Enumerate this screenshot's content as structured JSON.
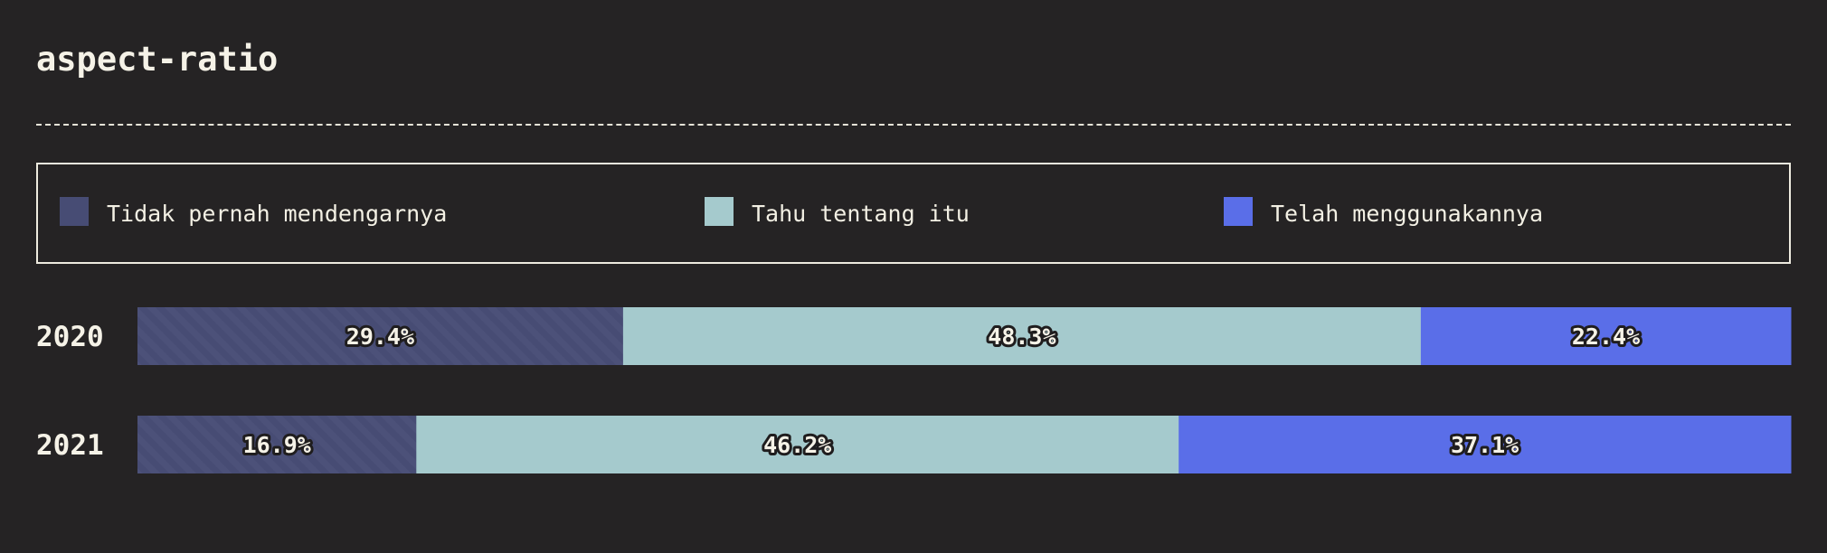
{
  "title": "aspect-ratio",
  "colors": {
    "background": "#252324",
    "never_heard": "#474c74",
    "know_about": "#a5cacd",
    "used_it": "#5a6ee8"
  },
  "legend": {
    "items": [
      {
        "label": "Tidak pernah mendengarnya",
        "color": "#474c74"
      },
      {
        "label": "Tahu tentang itu",
        "color": "#a5cacd"
      },
      {
        "label": "Telah menggunakannya",
        "color": "#5a6ee8"
      }
    ]
  },
  "chart_data": {
    "type": "bar",
    "orientation": "horizontal",
    "stacked": true,
    "normalized": true,
    "title": "aspect-ratio",
    "categories": [
      "2020",
      "2021"
    ],
    "series": [
      {
        "name": "Tidak pernah mendengarnya",
        "values": [
          29.4,
          16.9
        ],
        "labels": [
          "29.4%",
          "16.9%"
        ],
        "color": "#474c74",
        "pattern": "diagonal-stripes"
      },
      {
        "name": "Tahu tentang itu",
        "values": [
          48.3,
          46.2
        ],
        "labels": [
          "48.3%",
          "46.2%"
        ],
        "color": "#a5cacd"
      },
      {
        "name": "Telah menggunakannya",
        "values": [
          22.4,
          37.1
        ],
        "labels": [
          "22.4%",
          "37.1%"
        ],
        "color": "#5a6ee8"
      }
    ],
    "xlim": [
      0,
      100
    ],
    "unit": "%",
    "legend_position": "top",
    "grid": false
  }
}
